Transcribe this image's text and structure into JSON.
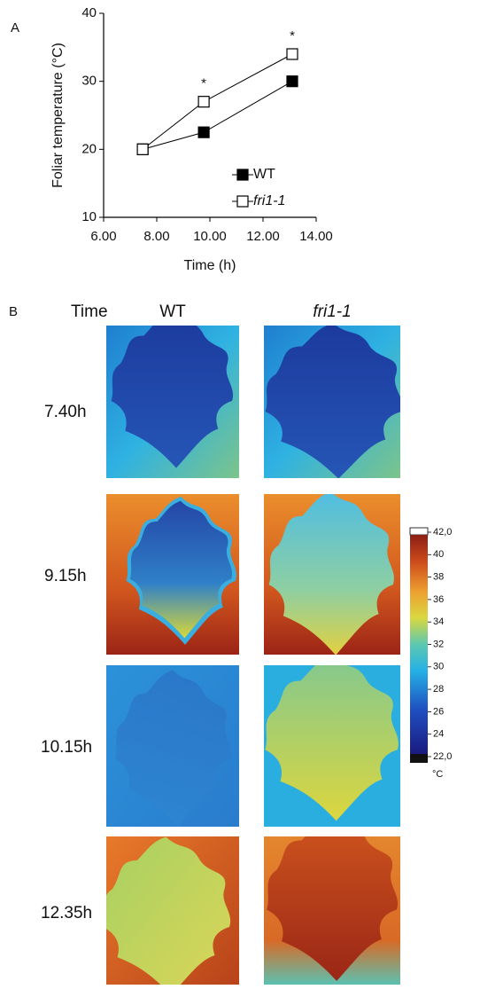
{
  "chart_data": {
    "type": "line",
    "panel_label": "A",
    "xlabel": "Time (h)",
    "ylabel": "Foliar temperature (°C)",
    "x": [
      7.47,
      9.77,
      13.1
    ],
    "series": [
      {
        "name": "WT",
        "color": "#000000",
        "marker": "filled-square",
        "values": [
          20,
          22.5,
          30
        ]
      },
      {
        "name": "fri1-1",
        "color": "#000000",
        "marker": "open-square",
        "values": [
          20,
          27,
          34
        ]
      }
    ],
    "significance": [
      null,
      "*",
      "*"
    ],
    "xlim": [
      6,
      14
    ],
    "xticks": [
      {
        "value": 6,
        "label": "6.00"
      },
      {
        "value": 8,
        "label": "8.00"
      },
      {
        "value": 10,
        "label": "10.00"
      },
      {
        "value": 12,
        "label": "12.00"
      },
      {
        "value": 14,
        "label": "14.00"
      }
    ],
    "ylim": [
      10,
      40
    ],
    "yticks": [
      10,
      20,
      30,
      40
    ],
    "legend": "lower right"
  },
  "thermal_panel": {
    "panel_label": "B",
    "time_header": "Time",
    "columns": [
      "WT",
      "fri1-1"
    ],
    "times": [
      "7.40h",
      "9.15h",
      "10.15h",
      "12.35h"
    ],
    "colorbar": {
      "lim": [
        22,
        42
      ],
      "unit": "°C",
      "ticks": [
        {
          "value": 42,
          "label": "42,0"
        },
        40,
        38,
        36,
        34,
        32,
        30,
        28,
        26,
        24,
        {
          "value": 22,
          "label": "22,0"
        }
      ]
    }
  }
}
